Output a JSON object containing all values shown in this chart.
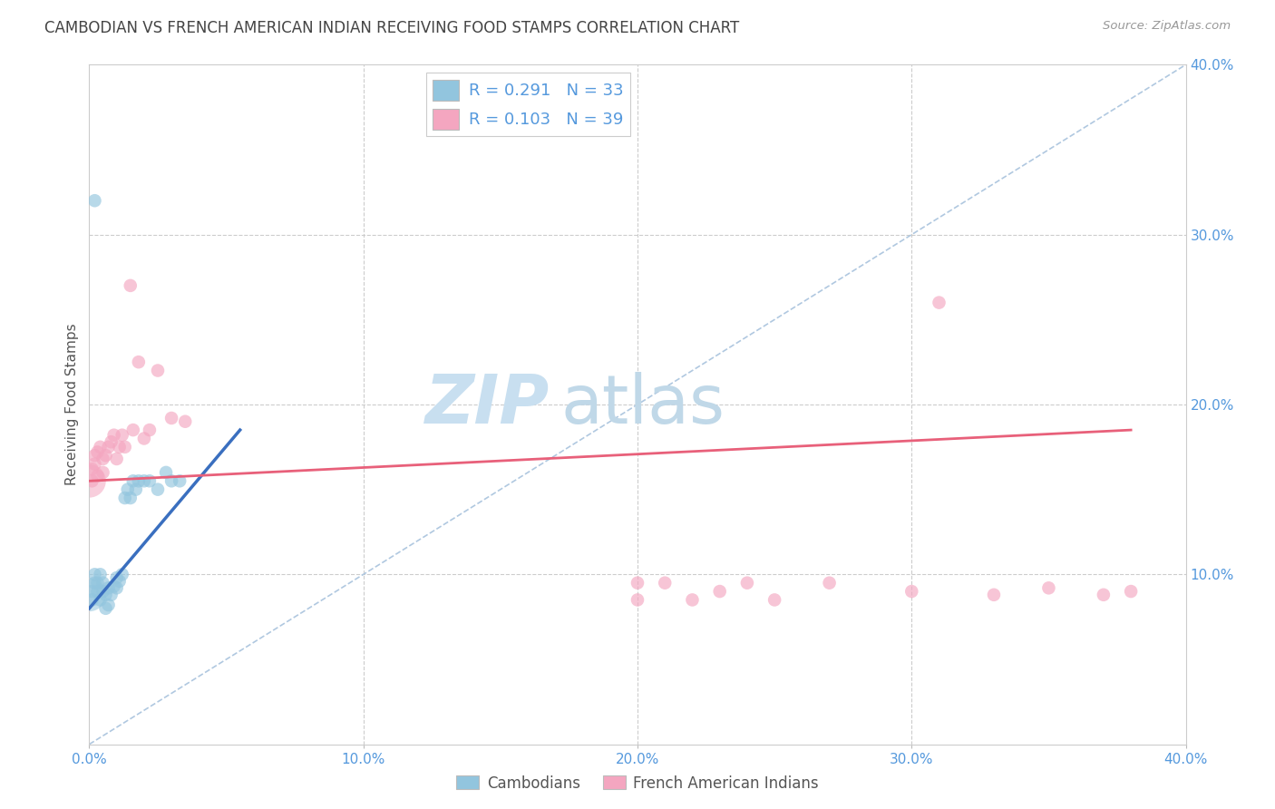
{
  "title": "CAMBODIAN VS FRENCH AMERICAN INDIAN RECEIVING FOOD STAMPS CORRELATION CHART",
  "source": "Source: ZipAtlas.com",
  "ylabel": "Receiving Food Stamps",
  "xlim": [
    0.0,
    0.4
  ],
  "ylim": [
    0.0,
    0.4
  ],
  "legend_r1": "R = 0.291",
  "legend_n1": "N = 33",
  "legend_r2": "R = 0.103",
  "legend_n2": "N = 39",
  "blue_color": "#92c5de",
  "pink_color": "#f4a6c0",
  "blue_line_color": "#3a6fbf",
  "pink_line_color": "#e8607a",
  "dashed_line_color": "#b0c8e0",
  "grid_color": "#cccccc",
  "title_color": "#444444",
  "watermark_zip": "ZIP",
  "watermark_atlas": "atlas",
  "watermark_color_zip": "#c8dff0",
  "watermark_color_atlas": "#c0d8e8",
  "cambodian_x": [
    0.001,
    0.001,
    0.002,
    0.002,
    0.003,
    0.003,
    0.004,
    0.004,
    0.005,
    0.005,
    0.006,
    0.006,
    0.007,
    0.007,
    0.008,
    0.009,
    0.01,
    0.01,
    0.011,
    0.012,
    0.013,
    0.014,
    0.015,
    0.016,
    0.017,
    0.018,
    0.02,
    0.022,
    0.025,
    0.028,
    0.03,
    0.033,
    0.002
  ],
  "cambodian_y": [
    0.085,
    0.09,
    0.095,
    0.1,
    0.09,
    0.095,
    0.1,
    0.085,
    0.09,
    0.095,
    0.08,
    0.088,
    0.082,
    0.092,
    0.088,
    0.093,
    0.098,
    0.092,
    0.096,
    0.1,
    0.145,
    0.15,
    0.145,
    0.155,
    0.15,
    0.155,
    0.155,
    0.155,
    0.15,
    0.16,
    0.155,
    0.155,
    0.32
  ],
  "french_x": [
    0.001,
    0.001,
    0.002,
    0.002,
    0.003,
    0.003,
    0.004,
    0.005,
    0.005,
    0.006,
    0.007,
    0.008,
    0.009,
    0.01,
    0.011,
    0.012,
    0.013,
    0.015,
    0.016,
    0.018,
    0.02,
    0.022,
    0.025,
    0.03,
    0.035,
    0.2,
    0.2,
    0.21,
    0.22,
    0.23,
    0.24,
    0.25,
    0.27,
    0.3,
    0.31,
    0.33,
    0.35,
    0.37,
    0.38
  ],
  "french_y": [
    0.155,
    0.162,
    0.165,
    0.17,
    0.158,
    0.172,
    0.175,
    0.16,
    0.168,
    0.17,
    0.175,
    0.178,
    0.182,
    0.168,
    0.175,
    0.182,
    0.175,
    0.27,
    0.185,
    0.225,
    0.18,
    0.185,
    0.22,
    0.192,
    0.19,
    0.095,
    0.085,
    0.095,
    0.085,
    0.09,
    0.095,
    0.085,
    0.095,
    0.09,
    0.26,
    0.088,
    0.092,
    0.088,
    0.09
  ],
  "blue_line_x": [
    0.0,
    0.055
  ],
  "blue_line_y": [
    0.08,
    0.185
  ],
  "pink_line_x": [
    0.0,
    0.38
  ],
  "pink_line_y": [
    0.155,
    0.185
  ]
}
